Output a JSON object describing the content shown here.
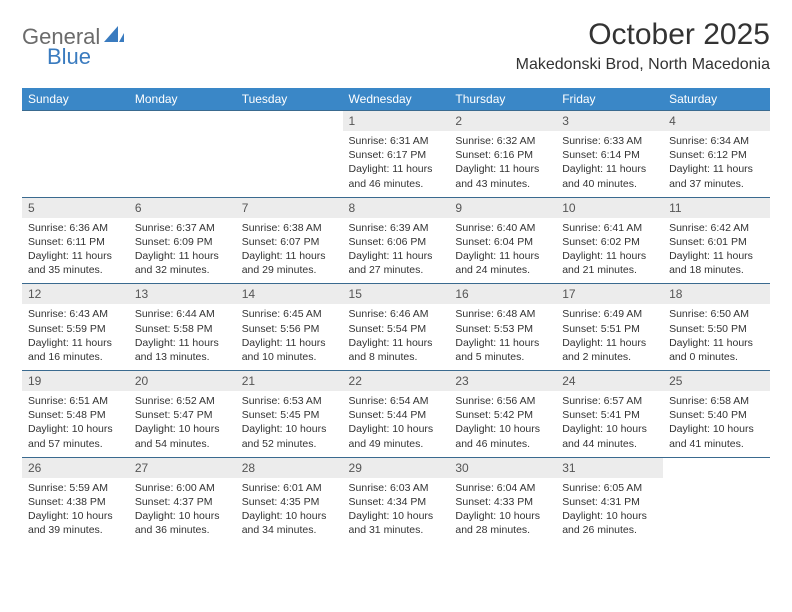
{
  "logo": {
    "word1": "General",
    "word2": "Blue"
  },
  "title": "October 2025",
  "location": "Makedonski Brod, North Macedonia",
  "colors": {
    "header_bg": "#3a87c7",
    "row_divider": "#3a6a8f",
    "daynum_bg": "#ececec",
    "logo_gray": "#6b6b6b",
    "logo_blue": "#3a7bbf"
  },
  "weekdays": [
    "Sunday",
    "Monday",
    "Tuesday",
    "Wednesday",
    "Thursday",
    "Friday",
    "Saturday"
  ],
  "grid": [
    [
      {
        "day": "",
        "sunrise": "",
        "sunset": "",
        "day_h": "",
        "day_m": ""
      },
      {
        "day": "",
        "sunrise": "",
        "sunset": "",
        "day_h": "",
        "day_m": ""
      },
      {
        "day": "",
        "sunrise": "",
        "sunset": "",
        "day_h": "",
        "day_m": ""
      },
      {
        "day": "1",
        "sunrise": "6:31 AM",
        "sunset": "6:17 PM",
        "day_h": "11",
        "day_m": "46"
      },
      {
        "day": "2",
        "sunrise": "6:32 AM",
        "sunset": "6:16 PM",
        "day_h": "11",
        "day_m": "43"
      },
      {
        "day": "3",
        "sunrise": "6:33 AM",
        "sunset": "6:14 PM",
        "day_h": "11",
        "day_m": "40"
      },
      {
        "day": "4",
        "sunrise": "6:34 AM",
        "sunset": "6:12 PM",
        "day_h": "11",
        "day_m": "37"
      }
    ],
    [
      {
        "day": "5",
        "sunrise": "6:36 AM",
        "sunset": "6:11 PM",
        "day_h": "11",
        "day_m": "35"
      },
      {
        "day": "6",
        "sunrise": "6:37 AM",
        "sunset": "6:09 PM",
        "day_h": "11",
        "day_m": "32"
      },
      {
        "day": "7",
        "sunrise": "6:38 AM",
        "sunset": "6:07 PM",
        "day_h": "11",
        "day_m": "29"
      },
      {
        "day": "8",
        "sunrise": "6:39 AM",
        "sunset": "6:06 PM",
        "day_h": "11",
        "day_m": "27"
      },
      {
        "day": "9",
        "sunrise": "6:40 AM",
        "sunset": "6:04 PM",
        "day_h": "11",
        "day_m": "24"
      },
      {
        "day": "10",
        "sunrise": "6:41 AM",
        "sunset": "6:02 PM",
        "day_h": "11",
        "day_m": "21"
      },
      {
        "day": "11",
        "sunrise": "6:42 AM",
        "sunset": "6:01 PM",
        "day_h": "11",
        "day_m": "18"
      }
    ],
    [
      {
        "day": "12",
        "sunrise": "6:43 AM",
        "sunset": "5:59 PM",
        "day_h": "11",
        "day_m": "16"
      },
      {
        "day": "13",
        "sunrise": "6:44 AM",
        "sunset": "5:58 PM",
        "day_h": "11",
        "day_m": "13"
      },
      {
        "day": "14",
        "sunrise": "6:45 AM",
        "sunset": "5:56 PM",
        "day_h": "11",
        "day_m": "10"
      },
      {
        "day": "15",
        "sunrise": "6:46 AM",
        "sunset": "5:54 PM",
        "day_h": "11",
        "day_m": "8"
      },
      {
        "day": "16",
        "sunrise": "6:48 AM",
        "sunset": "5:53 PM",
        "day_h": "11",
        "day_m": "5"
      },
      {
        "day": "17",
        "sunrise": "6:49 AM",
        "sunset": "5:51 PM",
        "day_h": "11",
        "day_m": "2"
      },
      {
        "day": "18",
        "sunrise": "6:50 AM",
        "sunset": "5:50 PM",
        "day_h": "11",
        "day_m": "0"
      }
    ],
    [
      {
        "day": "19",
        "sunrise": "6:51 AM",
        "sunset": "5:48 PM",
        "day_h": "10",
        "day_m": "57"
      },
      {
        "day": "20",
        "sunrise": "6:52 AM",
        "sunset": "5:47 PM",
        "day_h": "10",
        "day_m": "54"
      },
      {
        "day": "21",
        "sunrise": "6:53 AM",
        "sunset": "5:45 PM",
        "day_h": "10",
        "day_m": "52"
      },
      {
        "day": "22",
        "sunrise": "6:54 AM",
        "sunset": "5:44 PM",
        "day_h": "10",
        "day_m": "49"
      },
      {
        "day": "23",
        "sunrise": "6:56 AM",
        "sunset": "5:42 PM",
        "day_h": "10",
        "day_m": "46"
      },
      {
        "day": "24",
        "sunrise": "6:57 AM",
        "sunset": "5:41 PM",
        "day_h": "10",
        "day_m": "44"
      },
      {
        "day": "25",
        "sunrise": "6:58 AM",
        "sunset": "5:40 PM",
        "day_h": "10",
        "day_m": "41"
      }
    ],
    [
      {
        "day": "26",
        "sunrise": "5:59 AM",
        "sunset": "4:38 PM",
        "day_h": "10",
        "day_m": "39"
      },
      {
        "day": "27",
        "sunrise": "6:00 AM",
        "sunset": "4:37 PM",
        "day_h": "10",
        "day_m": "36"
      },
      {
        "day": "28",
        "sunrise": "6:01 AM",
        "sunset": "4:35 PM",
        "day_h": "10",
        "day_m": "34"
      },
      {
        "day": "29",
        "sunrise": "6:03 AM",
        "sunset": "4:34 PM",
        "day_h": "10",
        "day_m": "31"
      },
      {
        "day": "30",
        "sunrise": "6:04 AM",
        "sunset": "4:33 PM",
        "day_h": "10",
        "day_m": "28"
      },
      {
        "day": "31",
        "sunrise": "6:05 AM",
        "sunset": "4:31 PM",
        "day_h": "10",
        "day_m": "26"
      },
      {
        "day": "",
        "sunrise": "",
        "sunset": "",
        "day_h": "",
        "day_m": ""
      }
    ]
  ],
  "labels": {
    "sunrise_prefix": "Sunrise: ",
    "sunset_prefix": "Sunset: ",
    "daylight_prefix": "Daylight: ",
    "hours_word": " hours",
    "and_word": "and ",
    "minutes_word": " minutes."
  }
}
